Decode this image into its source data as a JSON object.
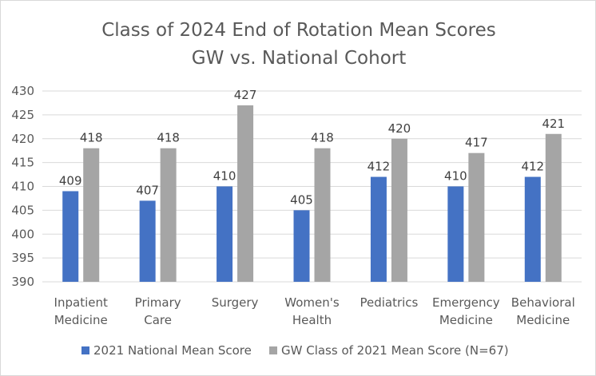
{
  "chart_data": {
    "type": "bar",
    "title": [
      "Class of 2024 End of Rotation Mean Scores",
      "GW vs. National Cohort"
    ],
    "categories": [
      [
        "Inpatient",
        "Medicine"
      ],
      [
        "Primary",
        "Care"
      ],
      [
        "Surgery"
      ],
      [
        "Women's",
        "Health"
      ],
      [
        "Pediatrics"
      ],
      [
        "Emergency",
        "Medicine"
      ],
      [
        "Behavioral",
        "Medicine"
      ]
    ],
    "series": [
      {
        "name": "2021 National Mean Score",
        "color": "#4472c4",
        "values": [
          409,
          407,
          410,
          405,
          412,
          410,
          412
        ]
      },
      {
        "name": "GW Class of 2021 Mean Score (N=67)",
        "color": "#a5a5a5",
        "values": [
          418,
          418,
          427,
          418,
          420,
          417,
          421
        ]
      }
    ],
    "ylim": [
      390,
      430
    ],
    "yticks": [
      390,
      395,
      400,
      405,
      410,
      415,
      420,
      425,
      430
    ],
    "grid": true,
    "legend": "bottom",
    "data_labels": true
  }
}
